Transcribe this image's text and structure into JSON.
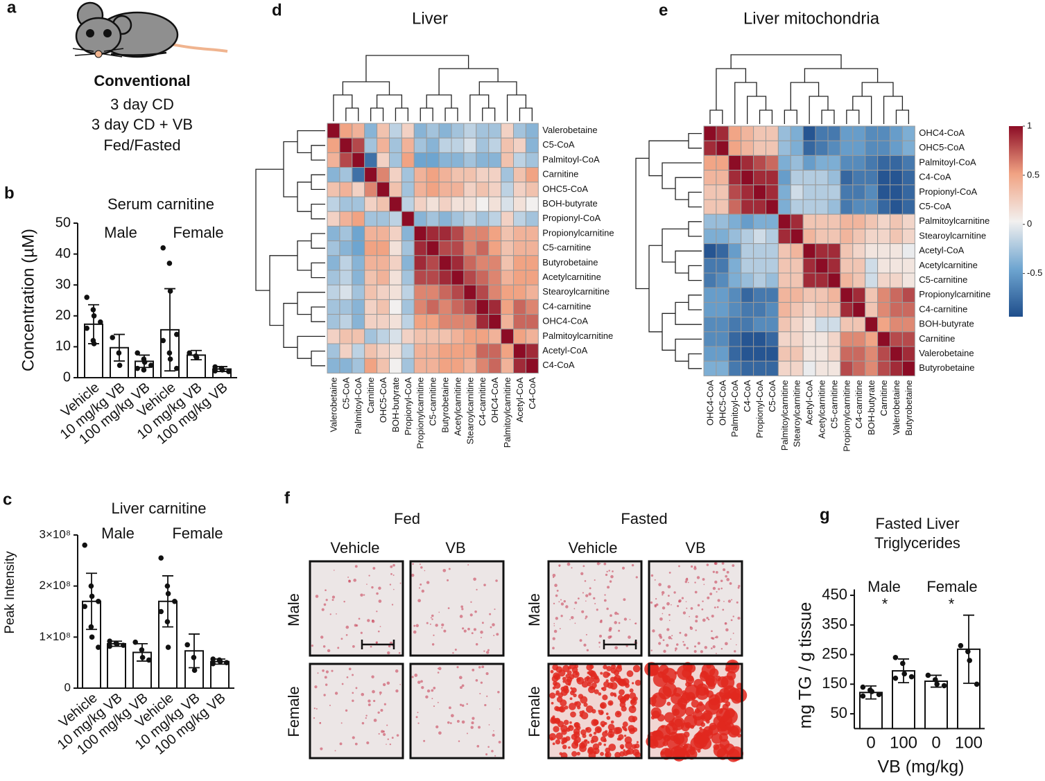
{
  "panel_labels": [
    "a",
    "b",
    "c",
    "d",
    "e",
    "f",
    "g"
  ],
  "panel_a": {
    "heading": "Conventional",
    "lines": [
      "3 day CD",
      "3 day CD + VB",
      "Fed/Fasted"
    ]
  },
  "panel_f": {
    "conditions": [
      "Fed",
      "Fasted"
    ],
    "treatments": [
      "Vehicle",
      "VB"
    ],
    "sexes": [
      "Male",
      "Female"
    ]
  },
  "chart_data": [
    {
      "type": "bar",
      "title": "Serum carnitine",
      "ylabel": "Concentration (µM)",
      "annotations": [
        "Male",
        "Female"
      ],
      "categories": [
        "Vehicle",
        "10 mg/kg VB",
        "100 mg/kg VB",
        "Vehicle",
        "10 mg/kg VB",
        "100 mg/kg VB"
      ],
      "values": [
        17.3,
        9.7,
        5.3,
        15.5,
        7.3,
        2.8
      ],
      "errors": [
        6.3,
        4.3,
        2,
        13.3,
        1.5,
        0.8
      ],
      "points": [
        [
          26,
          22,
          20,
          18,
          16,
          12,
          11
        ],
        [
          13,
          8,
          4
        ],
        [
          8,
          6,
          5,
          4,
          3,
          2.5
        ],
        [
          42,
          37,
          28,
          14,
          12,
          8,
          6,
          3
        ],
        [
          8,
          7,
          6.5
        ],
        [
          3.5,
          3,
          2.5,
          2,
          2.2,
          3
        ]
      ],
      "ylim": [
        0,
        50
      ],
      "yticks": [
        0,
        10,
        20,
        30,
        40,
        50
      ],
      "color": "#ffffff"
    },
    {
      "type": "bar",
      "title": "Liver carnitine",
      "ylabel": "Peak Intensity",
      "annotations": [
        "Male",
        "Female"
      ],
      "categories": [
        "Vehicle",
        "10 mg/kg VB",
        "100 mg/kg VB",
        "Vehicle",
        "10 mg/kg VB",
        "100 mg/kg VB"
      ],
      "values": [
        170000000,
        87000000,
        70000000,
        170000000,
        73000000,
        52000000
      ],
      "errors": [
        55000000,
        5000000,
        17000000,
        50000000,
        33000000,
        5000000
      ],
      "points": [
        [
          280000000,
          200000000,
          180000000,
          170000000,
          160000000,
          120000000,
          100000000,
          80000000
        ],
        [
          92000000,
          88000000,
          86000000,
          84000000,
          82000000
        ],
        [
          90000000,
          75000000,
          60000000,
          55000000
        ],
        [
          255000000,
          200000000,
          185000000,
          170000000,
          150000000,
          130000000,
          80000000
        ],
        [
          85000000,
          60000000,
          35000000
        ],
        [
          57000000,
          55000000,
          52000000,
          50000000,
          48000000
        ]
      ],
      "ylim": [
        0,
        300000000
      ],
      "yticks": [
        0,
        {
          "value": 100000000,
          "label": "1×10⁸"
        },
        {
          "value": 200000000,
          "label": "2×10⁸"
        },
        {
          "value": 300000000,
          "label": "3×10⁸"
        }
      ],
      "color": "#ffffff"
    },
    {
      "type": "heatmap",
      "title": "Liver",
      "labels": [
        "Valerobetaine",
        "C5-CoA",
        "Palmitoyl-CoA",
        "Carnitine",
        "OHC5-CoA",
        "BOH-butyrate",
        "Propionyl-CoA",
        "Propionylcarnitine",
        "C5-carnitine",
        "Butyrobetaine",
        "Acetylcarnitine",
        "Stearoylcarnitine",
        "C4-carnitine",
        "OHC4-CoA",
        "Palmitoylcarnitine",
        "Acetyl-CoA",
        "C4-CoA"
      ],
      "values": [
        [
          1,
          0.5,
          0.4,
          -0.4,
          0.3,
          -0.2,
          0.2,
          -0.4,
          -0.3,
          -0.4,
          -0.3,
          -0.2,
          -0.3,
          -0.3,
          0.2,
          -0.3,
          -0.4
        ],
        [
          0.5,
          1,
          0.8,
          -0.3,
          0.4,
          -0.3,
          0.4,
          -0.3,
          -0.4,
          -0.2,
          -0.2,
          -0.1,
          -0.3,
          -0.2,
          0.3,
          0.2,
          -0.4
        ],
        [
          0.4,
          0.8,
          1,
          -0.8,
          0.2,
          -0.3,
          0.5,
          -0.5,
          -0.5,
          -0.4,
          -0.4,
          -0.3,
          -0.4,
          -0.4,
          0.3,
          -0.2,
          -0.3
        ],
        [
          -0.4,
          -0.3,
          -0.8,
          1,
          0.6,
          0.2,
          -0.3,
          0.4,
          0.5,
          0.4,
          0.3,
          0.3,
          0.2,
          0.2,
          -0.3,
          0.3,
          0.5
        ],
        [
          0.3,
          0.4,
          0.2,
          0.6,
          1,
          0.3,
          -0.3,
          0.4,
          0.5,
          0.4,
          0.4,
          0.2,
          0.3,
          0.2,
          -0.2,
          0.2,
          0.3
        ],
        [
          -0.2,
          -0.3,
          -0.3,
          0.2,
          0.3,
          1,
          -0.2,
          0.2,
          0.1,
          0.2,
          0.1,
          0.1,
          0,
          0.1,
          -0.1,
          0.1,
          0
        ],
        [
          0.2,
          0.4,
          0.5,
          -0.3,
          -0.3,
          -0.2,
          1,
          -0.4,
          -0.3,
          -0.4,
          -0.3,
          -0.2,
          -0.3,
          -0.2,
          0.2,
          -0.2,
          -0.3
        ],
        [
          -0.4,
          -0.3,
          -0.5,
          0.4,
          0.4,
          0.2,
          -0.4,
          1,
          0.9,
          0.9,
          0.8,
          0.6,
          0.6,
          0.5,
          0.3,
          0.4,
          0.4
        ],
        [
          -0.3,
          -0.4,
          -0.5,
          0.5,
          0.5,
          0.1,
          -0.3,
          0.9,
          1,
          0.8,
          0.8,
          0.6,
          0.7,
          0.5,
          0.3,
          0.4,
          0.4
        ],
        [
          -0.4,
          -0.2,
          -0.4,
          0.4,
          0.4,
          0.2,
          -0.4,
          0.9,
          0.8,
          1,
          0.9,
          0.7,
          0.6,
          0.6,
          0.3,
          0.5,
          0.5
        ],
        [
          -0.3,
          -0.2,
          -0.4,
          0.3,
          0.4,
          0.1,
          -0.3,
          0.8,
          0.8,
          0.9,
          1,
          0.8,
          0.7,
          0.6,
          0.4,
          0.5,
          0.5
        ],
        [
          -0.2,
          -0.1,
          -0.3,
          0.3,
          0.2,
          0.1,
          -0.2,
          0.6,
          0.6,
          0.7,
          0.8,
          1,
          0.8,
          0.6,
          0.5,
          0.5,
          0.4
        ],
        [
          -0.3,
          -0.3,
          -0.4,
          0.2,
          0.3,
          0,
          -0.3,
          0.6,
          0.7,
          0.6,
          0.7,
          0.8,
          1,
          0.9,
          0.5,
          0.7,
          0.6
        ],
        [
          -0.3,
          -0.2,
          -0.4,
          0.2,
          0.2,
          0.1,
          -0.2,
          0.5,
          0.5,
          0.6,
          0.6,
          0.6,
          0.9,
          1,
          0.4,
          0.7,
          0.7
        ],
        [
          0.2,
          0.3,
          0.3,
          -0.3,
          -0.2,
          -0.1,
          0.2,
          0.3,
          0.3,
          0.3,
          0.4,
          0.5,
          0.5,
          0.4,
          1,
          0.5,
          0.4
        ],
        [
          -0.3,
          0.2,
          -0.2,
          0.3,
          0.2,
          0.1,
          -0.2,
          0.4,
          0.4,
          0.5,
          0.5,
          0.5,
          0.7,
          0.7,
          0.5,
          1,
          0.9
        ],
        [
          -0.4,
          -0.4,
          -0.3,
          0.5,
          0.3,
          0,
          -0.3,
          0.4,
          0.4,
          0.5,
          0.5,
          0.4,
          0.6,
          0.7,
          0.4,
          0.9,
          1
        ]
      ],
      "clim": [
        -1,
        1
      ],
      "colormap": [
        "#1f4e8c",
        "#6ea5d0",
        "#f2f0ef",
        "#f1a383",
        "#8c0c25"
      ]
    },
    {
      "type": "heatmap",
      "title": "Liver mitochondria",
      "labels": [
        "OHC4-CoA",
        "OHC5-CoA",
        "Palmitoyl-CoA",
        "C4-CoA",
        "Propionyl-CoA",
        "C5-CoA",
        "Palmitoylcarnitine",
        "Stearoylcarnitine",
        "Acetyl-CoA",
        "Acetylcarnitine",
        "C5-carnitine",
        "Propionylcarnitine",
        "C4-carnitine",
        "BOH-butyrate",
        "Carnitine",
        "Valerobetaine",
        "Butyrobetaine"
      ],
      "values": [
        [
          1,
          0.9,
          0.5,
          0.4,
          0.3,
          0.3,
          -0.3,
          -0.4,
          -0.9,
          -0.7,
          -0.7,
          -0.5,
          -0.5,
          -0.6,
          -0.6,
          -0.5,
          -0.4
        ],
        [
          0.9,
          1,
          0.5,
          0.4,
          0.3,
          0.3,
          -0.3,
          -0.4,
          -0.8,
          -0.7,
          -0.6,
          -0.5,
          -0.5,
          -0.6,
          -0.6,
          -0.5,
          -0.4
        ],
        [
          0.5,
          0.5,
          1,
          0.9,
          0.8,
          0.7,
          -0.4,
          -0.3,
          -0.5,
          -0.4,
          -0.4,
          -0.6,
          -0.6,
          -0.7,
          -0.8,
          -0.8,
          -0.7
        ],
        [
          0.4,
          0.4,
          0.9,
          1,
          0.9,
          0.9,
          -0.5,
          -0.2,
          -0.2,
          -0.2,
          -0.3,
          -0.8,
          -0.7,
          -0.7,
          -0.9,
          -0.9,
          -0.8
        ],
        [
          0.3,
          0.3,
          0.8,
          0.9,
          1,
          0.9,
          -0.4,
          -0.1,
          -0.2,
          -0.2,
          -0.2,
          -0.7,
          -0.7,
          -0.6,
          -0.9,
          -0.9,
          -0.8
        ],
        [
          0.3,
          0.3,
          0.7,
          0.9,
          0.9,
          1,
          -0.4,
          -0.2,
          -0.2,
          -0.2,
          -0.3,
          -0.7,
          -0.6,
          -0.6,
          -0.8,
          -0.9,
          -0.8
        ],
        [
          -0.3,
          -0.3,
          -0.4,
          -0.5,
          -0.4,
          -0.4,
          1,
          0.9,
          0.3,
          0.3,
          0.3,
          0.4,
          0.4,
          0.3,
          0.2,
          0.3,
          0.2
        ],
        [
          -0.4,
          -0.4,
          -0.3,
          -0.2,
          -0.1,
          -0.2,
          0.9,
          1,
          0.4,
          0.3,
          0.3,
          0.4,
          0.3,
          0.2,
          0.2,
          0.3,
          0.2
        ],
        [
          -0.9,
          -0.8,
          -0.5,
          -0.2,
          -0.2,
          -0.2,
          0.3,
          0.4,
          1,
          0.9,
          0.9,
          0.3,
          0.2,
          0.1,
          0.1,
          0.1,
          0
        ],
        [
          -0.7,
          -0.7,
          -0.4,
          -0.2,
          -0.2,
          -0.2,
          0.3,
          0.3,
          0.9,
          1,
          0.9,
          0.3,
          0.3,
          -0.1,
          0.1,
          0.1,
          0.1
        ],
        [
          -0.7,
          -0.6,
          -0.4,
          -0.3,
          -0.2,
          -0.3,
          0.3,
          0.3,
          0.9,
          0.9,
          1,
          0.4,
          0.3,
          -0.1,
          0.2,
          0.2,
          0.1
        ],
        [
          -0.5,
          -0.5,
          -0.6,
          -0.8,
          -0.7,
          -0.7,
          0.4,
          0.4,
          0.3,
          0.3,
          0.4,
          1,
          0.9,
          0.3,
          0.6,
          0.7,
          0.8
        ],
        [
          -0.5,
          -0.5,
          -0.6,
          -0.7,
          -0.7,
          -0.6,
          0.4,
          0.3,
          0.2,
          0.3,
          0.3,
          0.9,
          1,
          0.3,
          0.6,
          0.7,
          0.7
        ],
        [
          -0.6,
          -0.6,
          -0.7,
          -0.7,
          -0.6,
          -0.6,
          0.3,
          0.2,
          0.1,
          -0.1,
          -0.1,
          0.3,
          0.3,
          1,
          0.5,
          0.6,
          0.6
        ],
        [
          -0.6,
          -0.6,
          -0.8,
          -0.9,
          -0.9,
          -0.8,
          0.2,
          0.2,
          0.1,
          0.1,
          0.2,
          0.6,
          0.6,
          0.5,
          1,
          0.8,
          0.8
        ],
        [
          -0.5,
          -0.5,
          -0.8,
          -0.9,
          -0.9,
          -0.9,
          0.3,
          0.3,
          0.1,
          0.1,
          0.2,
          0.7,
          0.7,
          0.6,
          0.8,
          1,
          0.9
        ],
        [
          -0.4,
          -0.4,
          -0.7,
          -0.8,
          -0.8,
          -0.8,
          0.2,
          0.2,
          0,
          0.1,
          0.1,
          0.8,
          0.7,
          0.6,
          0.8,
          0.9,
          1
        ]
      ],
      "clim": [
        -0.94,
        1
      ],
      "cticks": [
        1,
        0.5,
        0,
        -0.5
      ],
      "colormap": [
        "#1f4e8c",
        "#6ea5d0",
        "#f2f0ef",
        "#f1a383",
        "#8c0c25"
      ]
    },
    {
      "type": "bar",
      "title": [
        "Fasted Liver",
        "Triglycerides"
      ],
      "ylabel": "mg TG / g tissue",
      "xlabel": "VB (mg/kg)",
      "annotations": [
        "Male",
        "Female",
        "*",
        "*"
      ],
      "categories": [
        "0",
        "100",
        "0",
        "100"
      ],
      "values": [
        122,
        195,
        160,
        268
      ],
      "errors": [
        22,
        40,
        20,
        115
      ],
      "points": [
        [
          140,
          130,
          125,
          115,
          110
        ],
        [
          240,
          220,
          185,
          175,
          170
        ],
        [
          180,
          165,
          150,
          145
        ],
        [
          280,
          260,
          230,
          150
        ]
      ],
      "ylim": [
        0,
        470
      ],
      "yticks": [
        50,
        150,
        250,
        350,
        450
      ],
      "color": "#ffffff"
    }
  ]
}
